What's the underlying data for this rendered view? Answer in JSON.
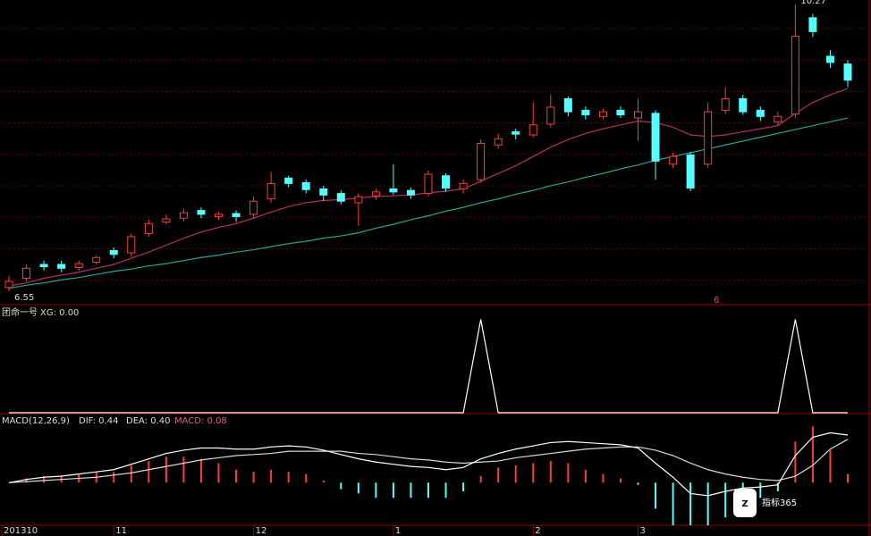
{
  "chart_data": {
    "type": "candlestick",
    "categories": [
      "201310",
      null,
      null,
      null,
      null,
      null,
      "11",
      null,
      null,
      null,
      null,
      null,
      null,
      null,
      "12",
      null,
      null,
      null,
      null,
      null,
      null,
      null,
      "1",
      null,
      null,
      null,
      null,
      null,
      null,
      null,
      "2",
      null,
      null,
      null,
      null,
      null,
      "3",
      null,
      null,
      null,
      null,
      null,
      null,
      null,
      null,
      null,
      null,
      null,
      null
    ],
    "open": [
      6.6,
      6.72,
      6.9,
      6.9,
      6.86,
      6.93,
      7.08,
      7.05,
      7.3,
      7.45,
      7.5,
      7.6,
      7.52,
      7.56,
      7.55,
      7.75,
      8.02,
      7.96,
      7.88,
      7.82,
      7.7,
      7.79,
      7.88,
      7.86,
      7.82,
      8.05,
      7.88,
      8.0,
      8.45,
      8.62,
      8.58,
      8.72,
      9.05,
      8.9,
      8.82,
      8.9,
      8.8,
      8.86,
      8.2,
      8.32,
      8.2,
      8.9,
      9.05,
      8.9,
      8.75,
      8.85,
      10.1,
      9.6,
      9.5
    ],
    "high": [
      6.75,
      6.9,
      6.95,
      6.95,
      6.95,
      7.02,
      7.12,
      7.3,
      7.48,
      7.55,
      7.62,
      7.64,
      7.58,
      7.6,
      7.78,
      8.1,
      8.05,
      8.0,
      7.92,
      7.86,
      7.82,
      7.88,
      8.2,
      7.9,
      8.12,
      8.08,
      8.0,
      8.52,
      8.6,
      8.66,
      9.0,
      9.1,
      9.08,
      8.95,
      8.92,
      8.95,
      9.05,
      8.9,
      8.35,
      8.36,
      9.0,
      9.2,
      9.1,
      8.95,
      8.88,
      10.27,
      10.15,
      9.68,
      9.55
    ],
    "low": [
      6.55,
      6.68,
      6.82,
      6.8,
      6.82,
      6.9,
      6.98,
      7.0,
      7.26,
      7.42,
      7.46,
      7.5,
      7.48,
      7.45,
      7.5,
      7.7,
      7.9,
      7.82,
      7.72,
      7.68,
      7.4,
      7.74,
      7.8,
      7.75,
      7.78,
      7.84,
      7.82,
      7.96,
      8.4,
      8.52,
      8.55,
      8.68,
      8.82,
      8.78,
      8.78,
      8.8,
      8.5,
      8.0,
      8.15,
      7.85,
      8.15,
      8.85,
      8.84,
      8.76,
      8.7,
      8.8,
      9.85,
      9.45,
      9.2
    ],
    "close": [
      6.68,
      6.85,
      6.87,
      6.85,
      6.91,
      6.99,
      7.03,
      7.26,
      7.43,
      7.49,
      7.57,
      7.55,
      7.55,
      7.52,
      7.72,
      7.95,
      7.95,
      7.87,
      7.8,
      7.72,
      7.78,
      7.84,
      7.84,
      7.8,
      8.07,
      7.89,
      7.95,
      8.47,
      8.53,
      8.59,
      8.71,
      8.94,
      8.88,
      8.84,
      8.88,
      8.84,
      8.88,
      8.24,
      8.3,
      7.89,
      8.88,
      9.05,
      8.88,
      8.82,
      8.82,
      9.86,
      9.92,
      9.52,
      9.29
    ],
    "up_color": "#ff3c3c",
    "down_color": "#54ffff",
    "ylim": [
      6.39,
      10.33
    ],
    "series": [
      {
        "name": "MA-mid",
        "color": "#b0306a",
        "values": [
          6.62,
          6.66,
          6.72,
          6.76,
          6.8,
          6.85,
          6.9,
          6.98,
          7.06,
          7.15,
          7.24,
          7.32,
          7.38,
          7.43,
          7.5,
          7.58,
          7.65,
          7.7,
          7.73,
          7.74,
          7.76,
          7.78,
          7.79,
          7.8,
          7.83,
          7.85,
          7.88,
          7.98,
          8.08,
          8.18,
          8.3,
          8.42,
          8.52,
          8.6,
          8.66,
          8.71,
          8.76,
          8.74,
          8.68,
          8.58,
          8.56,
          8.58,
          8.62,
          8.66,
          8.7,
          8.86,
          9.0,
          9.1,
          9.18
        ]
      },
      {
        "name": "MA-long",
        "color": "#2aa39a",
        "values": [
          6.59,
          6.63,
          6.66,
          6.7,
          6.73,
          6.77,
          6.81,
          6.84,
          6.88,
          6.91,
          6.95,
          6.99,
          7.02,
          7.06,
          7.09,
          7.13,
          7.17,
          7.2,
          7.24,
          7.27,
          7.31,
          7.37,
          7.42,
          7.48,
          7.53,
          7.59,
          7.64,
          7.7,
          7.75,
          7.81,
          7.86,
          7.92,
          7.97,
          8.03,
          8.08,
          8.14,
          8.19,
          8.25,
          8.3,
          8.35,
          8.4,
          8.45,
          8.5,
          8.55,
          8.6,
          8.65,
          8.7,
          8.75,
          8.8
        ]
      }
    ],
    "low_label": "6.55",
    "high_label": "10.27",
    "marker_label": "6",
    "indicator": {
      "title": "团命一号",
      "label": "XG: 0.00",
      "color": "#ffffff",
      "ylim": [
        0,
        1.12
      ],
      "values": [
        0,
        0,
        0,
        0,
        0,
        0,
        0,
        0,
        0,
        0,
        0,
        0,
        0,
        0,
        0,
        0,
        0,
        0,
        0,
        0,
        0,
        0,
        0,
        0,
        0,
        0,
        0,
        1,
        0,
        0,
        0,
        0,
        0,
        0,
        0,
        0,
        0,
        0,
        0,
        0,
        0,
        0,
        0,
        0,
        0,
        1,
        0,
        0,
        0
      ]
    },
    "macd": {
      "title": "MACD(12,26,9)",
      "dif_label": "DIF: 0.44",
      "dea_label": "DEA: 0.40",
      "macd_label": "MACD: 0.08",
      "ylim": [
        -0.41,
        0.58
      ],
      "dif_color": "#ffffff",
      "dea_color": "#d8d8d8",
      "pos_color": "#ff3c3c",
      "neg_color": "#54ffff",
      "dif": [
        0.0,
        0.03,
        0.05,
        0.06,
        0.08,
        0.1,
        0.12,
        0.17,
        0.22,
        0.27,
        0.3,
        0.32,
        0.32,
        0.31,
        0.31,
        0.33,
        0.34,
        0.33,
        0.3,
        0.26,
        0.22,
        0.19,
        0.17,
        0.15,
        0.14,
        0.12,
        0.14,
        0.22,
        0.27,
        0.31,
        0.34,
        0.37,
        0.38,
        0.37,
        0.36,
        0.35,
        0.32,
        0.18,
        0.05,
        -0.1,
        -0.12,
        -0.08,
        -0.05,
        -0.04,
        -0.02,
        0.25,
        0.42,
        0.46,
        0.44
      ],
      "dea": [
        0.0,
        0.01,
        0.02,
        0.03,
        0.04,
        0.05,
        0.07,
        0.09,
        0.12,
        0.15,
        0.18,
        0.21,
        0.23,
        0.25,
        0.26,
        0.27,
        0.29,
        0.29,
        0.29,
        0.29,
        0.27,
        0.26,
        0.24,
        0.22,
        0.21,
        0.19,
        0.18,
        0.19,
        0.2,
        0.23,
        0.25,
        0.27,
        0.29,
        0.31,
        0.32,
        0.33,
        0.33,
        0.3,
        0.25,
        0.18,
        0.12,
        0.08,
        0.05,
        0.03,
        0.02,
        0.06,
        0.16,
        0.31,
        0.4
      ],
      "values": [
        0,
        0.04,
        0.06,
        0.06,
        0.08,
        0.1,
        0.1,
        0.16,
        0.2,
        0.24,
        0.24,
        0.22,
        0.18,
        0.12,
        0.1,
        0.12,
        0.1,
        0.08,
        0.02,
        -0.06,
        -0.1,
        -0.14,
        -0.14,
        -0.14,
        -0.14,
        -0.14,
        -0.08,
        0.06,
        0.14,
        0.16,
        0.18,
        0.2,
        0.18,
        0.12,
        0.08,
        0.04,
        -0.02,
        -0.24,
        -0.4,
        -0.56,
        -0.48,
        -0.32,
        -0.2,
        -0.14,
        -0.08,
        0.38,
        0.52,
        0.3,
        0.08
      ]
    },
    "watermark": "指标365"
  }
}
